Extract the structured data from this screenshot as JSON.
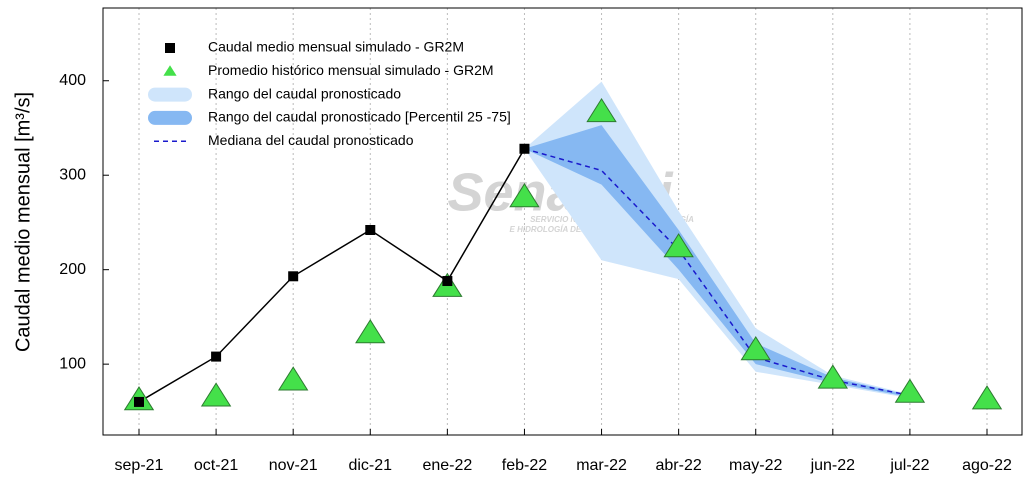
{
  "chart_data": {
    "type": "line",
    "y_label": "Caudal medio mensual  [m³/s]",
    "categories": [
      "sep-21",
      "oct-21",
      "nov-21",
      "dic-21",
      "ene-22",
      "feb-22",
      "mar-22",
      "abr-22",
      "may-22",
      "jun-22",
      "jul-22",
      "ago-22"
    ],
    "ylim": [
      25,
      477
    ],
    "yticks": [
      100,
      200,
      300,
      400
    ],
    "grid": true,
    "legend": "upper left",
    "watermark": [
      "Senamhi",
      "SERVICIO NACIONAL DE METEOROLOGÍA",
      "E HIDROLOGÍA DEL PERÚ"
    ],
    "series": [
      {
        "name": "Caudal medio mensual simulado - GR2M",
        "kind": "square_line",
        "color": "#000000",
        "values": [
          60,
          108,
          193,
          242,
          188,
          328,
          null,
          null,
          null,
          null,
          null,
          null
        ]
      },
      {
        "name": "Promedio histórico mensual simulado - GR2M",
        "kind": "triangle",
        "color": "#44e04a",
        "values": [
          62,
          66,
          83,
          133,
          182,
          277,
          367,
          224,
          115,
          85,
          70,
          63
        ]
      },
      {
        "name": "Rango del caudal pronosticado",
        "kind": "band",
        "color": "#cfe5fb",
        "upper": [
          null,
          null,
          null,
          null,
          null,
          328,
          399,
          262,
          138,
          88,
          68,
          null
        ],
        "lower": [
          null,
          null,
          null,
          null,
          null,
          328,
          210,
          190,
          92,
          78,
          64,
          null
        ]
      },
      {
        "name": "Rango del caudal pronosticado [Percentil 25 -75]",
        "kind": "band",
        "color": "#86b8f2",
        "upper": [
          null,
          null,
          null,
          null,
          null,
          328,
          353,
          242,
          122,
          86,
          67,
          null
        ],
        "lower": [
          null,
          null,
          null,
          null,
          null,
          328,
          290,
          200,
          100,
          80,
          65,
          null
        ]
      },
      {
        "name": "Mediana del caudal pronosticado",
        "kind": "dashed",
        "color": "#1a1acc",
        "values": [
          null,
          null,
          null,
          null,
          null,
          328,
          305,
          221,
          107,
          83,
          67,
          null
        ]
      }
    ]
  }
}
